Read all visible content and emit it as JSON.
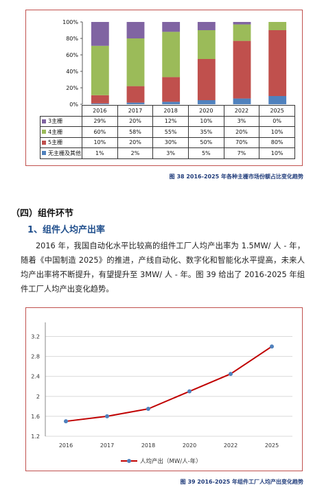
{
  "chart1": {
    "type": "bar",
    "stacked": true,
    "categories": [
      "2016",
      "2017",
      "2018",
      "2020",
      "2022",
      "2025"
    ],
    "ylim": [
      0,
      100
    ],
    "yticks": [
      "0%",
      "20%",
      "40%",
      "60%",
      "80%",
      "100%"
    ],
    "series": [
      {
        "name": "无主栅及其他",
        "values": [
          1,
          2,
          3,
          5,
          7,
          10
        ],
        "labels": [
          "1%",
          "2%",
          "3%",
          "5%",
          "7%",
          "10%"
        ],
        "color": "#4f81bd"
      },
      {
        "name": "5主栅",
        "values": [
          10,
          20,
          30,
          50,
          70,
          80
        ],
        "labels": [
          "10%",
          "20%",
          "30%",
          "50%",
          "70%",
          "80%"
        ],
        "color": "#c0504d"
      },
      {
        "name": "4主栅",
        "values": [
          60,
          58,
          55,
          35,
          20,
          10
        ],
        "labels": [
          "60%",
          "58%",
          "55%",
          "35%",
          "20%",
          "10%"
        ],
        "color": "#9bbb59"
      },
      {
        "name": "3主栅",
        "values": [
          29,
          20,
          12,
          10,
          3,
          0
        ],
        "labels": [
          "29%",
          "20%",
          "12%",
          "10%",
          "3%",
          "0%"
        ],
        "color": "#8064a2"
      }
    ],
    "caption": "图 38 2016-2025 年各种主栅市场份额占比变化趋势"
  },
  "section": {
    "title": "（四）组件环节",
    "subtitle": "1、组件人均产出率",
    "paragraph": "2016 年，我国自动化水平比较高的组件工厂人均产出率为 1.5MW/ 人 - 年，随着《中国制造 2025》的推进，产线自动化、数字化和智能化水平提高，未来人均产出率将不断提升，有望提升至 3MW/ 人 - 年。图 39 给出了 2016-2025 年组件工厂人均产出变化趋势。"
  },
  "chart_data": {
    "type": "line",
    "categories": [
      "2016",
      "2017",
      "2018",
      "2020",
      "2022",
      "2025"
    ],
    "series": [
      {
        "name": "人均产出（MW/人-年）",
        "values": [
          1.5,
          1.6,
          1.75,
          2.1,
          2.45,
          3.0
        ],
        "color": "#c00000"
      }
    ],
    "ylim": [
      1.2,
      3.4
    ],
    "yticks": [
      "1.2",
      "1.6",
      "2",
      "2.4",
      "2.8",
      "3.2"
    ],
    "ytick_values": [
      1.2,
      1.6,
      2.0,
      2.4,
      2.8,
      3.2
    ],
    "caption": "图 39 2016-2025 年组件工厂人均产出变化趋势"
  }
}
